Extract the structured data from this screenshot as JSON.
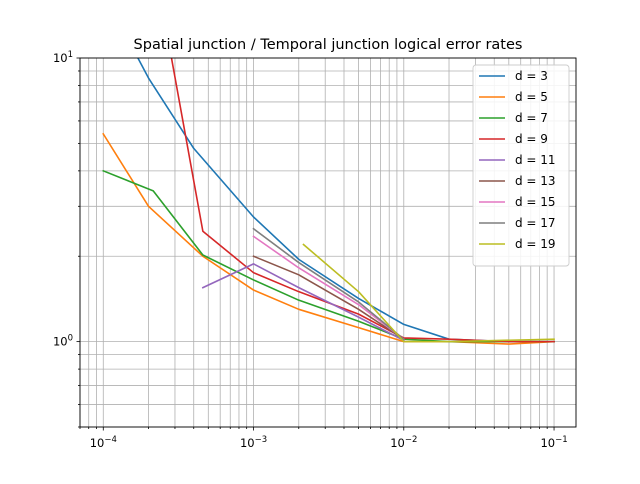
{
  "chart_data": {
    "type": "line",
    "title": "Spatial junction / Temporal junction logical error rates",
    "xlabel": "",
    "ylabel": "",
    "xscale": "log",
    "yscale": "log",
    "xlim": [
      7e-05,
      0.14
    ],
    "ylim": [
      0.5,
      10
    ],
    "grid": true,
    "grid_minor": true,
    "legend_position": "top-right",
    "x_tick_labels": [
      {
        "value": 0.0001,
        "base": "10",
        "exp": "−4"
      },
      {
        "value": 0.001,
        "base": "10",
        "exp": "−3"
      },
      {
        "value": 0.01,
        "base": "10",
        "exp": "−2"
      },
      {
        "value": 0.1,
        "base": "10",
        "exp": "−1"
      }
    ],
    "y_tick_labels": [
      {
        "value": 1,
        "base": "10",
        "exp": "0"
      },
      {
        "value": 10,
        "base": "10",
        "exp": "1"
      }
    ],
    "series": [
      {
        "name": "d = 3",
        "color": "#1f77b4",
        "x": [
          0.0001,
          0.0002,
          0.0004,
          0.001,
          0.002,
          0.005,
          0.01,
          0.02,
          0.05,
          0.1
        ],
        "y": [
          17.0,
          8.5,
          4.8,
          2.75,
          1.95,
          1.42,
          1.15,
          1.02,
          1.0,
          1.0
        ]
      },
      {
        "name": "d = 5",
        "color": "#ff7f0e",
        "x": [
          0.0001,
          0.0002,
          0.00046,
          0.001,
          0.002,
          0.005,
          0.01,
          0.02,
          0.05,
          0.1
        ],
        "y": [
          5.4,
          3.0,
          2.0,
          1.52,
          1.3,
          1.12,
          1.0,
          1.0,
          0.98,
          1.0
        ]
      },
      {
        "name": "d = 7",
        "color": "#2ca02c",
        "x": [
          0.0001,
          0.000215,
          0.00046,
          0.001,
          0.002,
          0.005,
          0.01,
          0.02,
          0.05,
          0.1
        ],
        "y": [
          4.0,
          3.4,
          2.02,
          1.65,
          1.4,
          1.18,
          1.02,
          1.0,
          1.0,
          1.0
        ]
      },
      {
        "name": "d = 9",
        "color": "#d62728",
        "x": [
          0.00026,
          0.00046,
          0.001,
          0.002,
          0.005,
          0.01,
          0.02,
          0.05,
          0.1
        ],
        "y": [
          13.0,
          2.45,
          1.75,
          1.5,
          1.25,
          1.03,
          1.02,
          1.0,
          1.0
        ]
      },
      {
        "name": "d = 11",
        "color": "#9467bd",
        "x": [
          0.00046,
          0.001,
          0.002,
          0.005,
          0.01
        ],
        "y": [
          1.55,
          1.88,
          1.55,
          1.22,
          1.01
        ]
      },
      {
        "name": "d = 13",
        "color": "#8c564b",
        "x": [
          0.001,
          0.002,
          0.005,
          0.01
        ],
        "y": [
          2.0,
          1.72,
          1.3,
          1.02
        ]
      },
      {
        "name": "d = 15",
        "color": "#e377c2",
        "x": [
          0.001,
          0.002,
          0.005,
          0.01
        ],
        "y": [
          2.35,
          1.82,
          1.35,
          1.02
        ]
      },
      {
        "name": "d = 17",
        "color": "#7f7f7f",
        "x": [
          0.001,
          0.002,
          0.005,
          0.01
        ],
        "y": [
          2.5,
          1.9,
          1.38,
          1.02
        ]
      },
      {
        "name": "d = 19",
        "color": "#bcbd22",
        "x": [
          0.00215,
          0.005,
          0.01,
          0.02,
          0.1
        ],
        "y": [
          2.2,
          1.5,
          1.0,
          1.0,
          1.02
        ]
      }
    ]
  }
}
